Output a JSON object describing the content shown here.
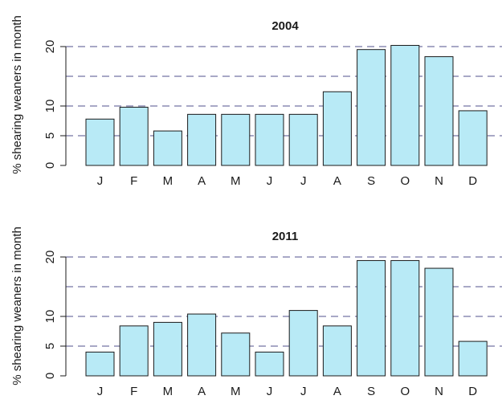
{
  "chart_data": [
    {
      "type": "bar",
      "title": "2004",
      "ylabel": "% shearing weaners in month",
      "categories": [
        "J",
        "F",
        "M",
        "A",
        "M",
        "J",
        "J",
        "A",
        "S",
        "O",
        "N",
        "D"
      ],
      "values": [
        7.8,
        9.8,
        5.8,
        8.6,
        8.6,
        8.6,
        8.6,
        12.4,
        19.5,
        20.2,
        18.3,
        9.2
      ],
      "yticks": [
        "0",
        "5",
        "10",
        "20"
      ],
      "ylim": [
        0,
        20
      ],
      "gridlines": [
        5,
        10,
        15,
        20
      ],
      "grid": true,
      "colors": {
        "bar": "#b8eaf6",
        "edge": "#1a1a1a",
        "grid": "#404080"
      }
    },
    {
      "type": "bar",
      "title": "2011",
      "ylabel": "% shearing weaners in month",
      "categories": [
        "J",
        "F",
        "M",
        "A",
        "M",
        "J",
        "J",
        "A",
        "S",
        "O",
        "N",
        "D"
      ],
      "values": [
        4.0,
        8.4,
        9.0,
        10.4,
        7.2,
        4.0,
        11.0,
        8.4,
        19.4,
        19.4,
        18.1,
        5.8
      ],
      "yticks": [
        "0",
        "5",
        "10",
        "20"
      ],
      "ylim": [
        0,
        20
      ],
      "gridlines": [
        5,
        10,
        15,
        20
      ],
      "grid": true,
      "colors": {
        "bar": "#b8eaf6",
        "edge": "#1a1a1a",
        "grid": "#404080"
      }
    }
  ]
}
